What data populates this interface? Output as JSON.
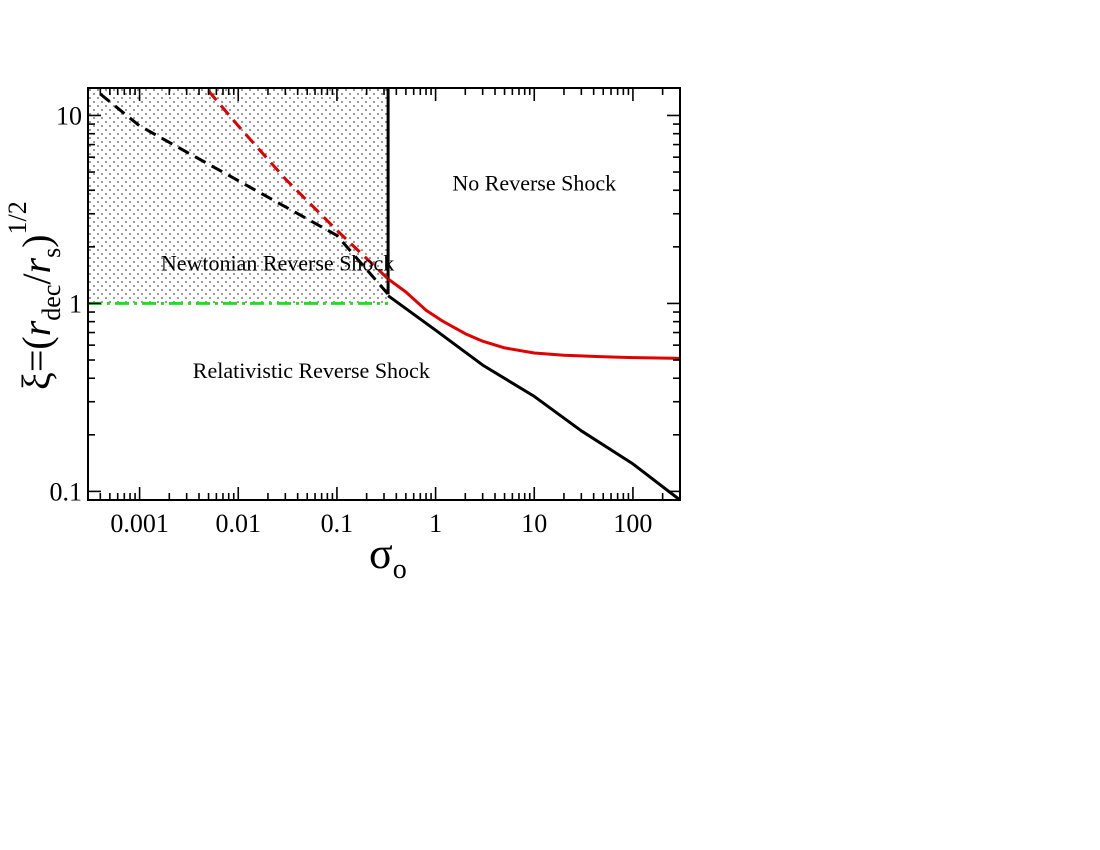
{
  "chart_data": {
    "type": "line",
    "x_scale": "log",
    "y_scale": "log",
    "xlim": [
      0.0003,
      300
    ],
    "ylim": [
      0.09,
      14
    ],
    "xlabel": "σ",
    "xlabel_sub": "o",
    "ylabel": {
      "xi": "ξ",
      "equals_paren": "=(",
      "r1": "r",
      "sub1": "dec",
      "slash": "/",
      "r2": "r",
      "sub2": "s",
      "close": ")",
      "exp": "1/2"
    },
    "x_ticks": [
      {
        "value": 0.001,
        "label": "0.001"
      },
      {
        "value": 0.01,
        "label": "0.01"
      },
      {
        "value": 0.1,
        "label": "0.1"
      },
      {
        "value": 1,
        "label": "1"
      },
      {
        "value": 10,
        "label": "10"
      },
      {
        "value": 100,
        "label": "100"
      }
    ],
    "y_ticks": [
      {
        "value": 0.1,
        "label": "0.1"
      },
      {
        "value": 1,
        "label": "1"
      },
      {
        "value": 10,
        "label": "10"
      }
    ],
    "grid": false,
    "legend": "none",
    "shaded_region": {
      "pattern": "dots",
      "x_from": 0.0003,
      "x_to": 0.33,
      "y_from": 1,
      "y_to": 14
    },
    "series": [
      {
        "style": "solid",
        "color": "#000000",
        "x": [
          0.33,
          0.33
        ],
        "y": [
          14,
          1.12
        ]
      },
      {
        "style": "solid",
        "color": "#000000",
        "x": [
          0.33,
          1,
          3,
          10,
          30,
          100,
          300
        ],
        "y": [
          1.1,
          0.72,
          0.47,
          0.32,
          0.21,
          0.14,
          0.09
        ]
      },
      {
        "style": "solid",
        "color": "#e00000",
        "x": [
          0.33,
          0.5,
          0.8,
          1.2,
          2,
          3,
          5,
          10,
          20,
          50,
          100,
          300
        ],
        "y": [
          1.35,
          1.15,
          0.92,
          0.8,
          0.69,
          0.63,
          0.58,
          0.545,
          0.53,
          0.52,
          0.515,
          0.51
        ]
      },
      {
        "style": "dashed",
        "color": "#000000",
        "x": [
          0.0004,
          0.001,
          0.01,
          0.1,
          0.33
        ],
        "y": [
          13,
          8.8,
          4.5,
          2.3,
          1.12
        ]
      },
      {
        "style": "dashed",
        "color": "#e00000",
        "x": [
          0.005,
          0.01,
          0.03,
          0.1,
          0.33
        ],
        "y": [
          13.5,
          8.8,
          4.6,
          2.45,
          1.35
        ]
      },
      {
        "style": "dashdot",
        "color": "#22dd22",
        "x": [
          0.0003,
          0.33
        ],
        "y": [
          1,
          1
        ]
      }
    ],
    "annotations": [
      {
        "text": "No Reverse Shock",
        "x": 10,
        "y": 4
      },
      {
        "text": "Newtonian Reverse Shock",
        "x": 0.025,
        "y": 1.5
      },
      {
        "text": "Relativistic Reverse Shock",
        "x": 0.055,
        "y": 0.4
      }
    ]
  }
}
